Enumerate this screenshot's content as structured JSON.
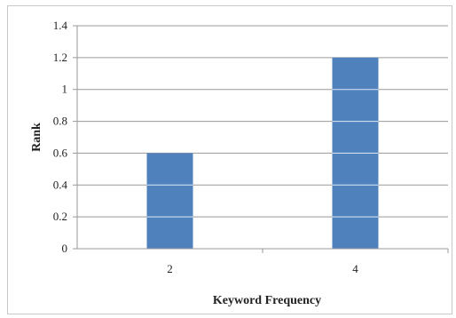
{
  "chart_data": {
    "type": "bar",
    "categories": [
      "2",
      "4"
    ],
    "values": [
      0.6,
      1.2
    ],
    "xlabel": "Keyword Frequency",
    "ylabel": "Rank",
    "ylim": [
      0,
      1.4
    ],
    "yticks": [
      "0",
      "0.2",
      "0.4",
      "0.6",
      "0.8",
      "1",
      "1.2",
      "1.4"
    ],
    "grid": true,
    "legend": "none",
    "bar_color": "#4f81bd"
  }
}
